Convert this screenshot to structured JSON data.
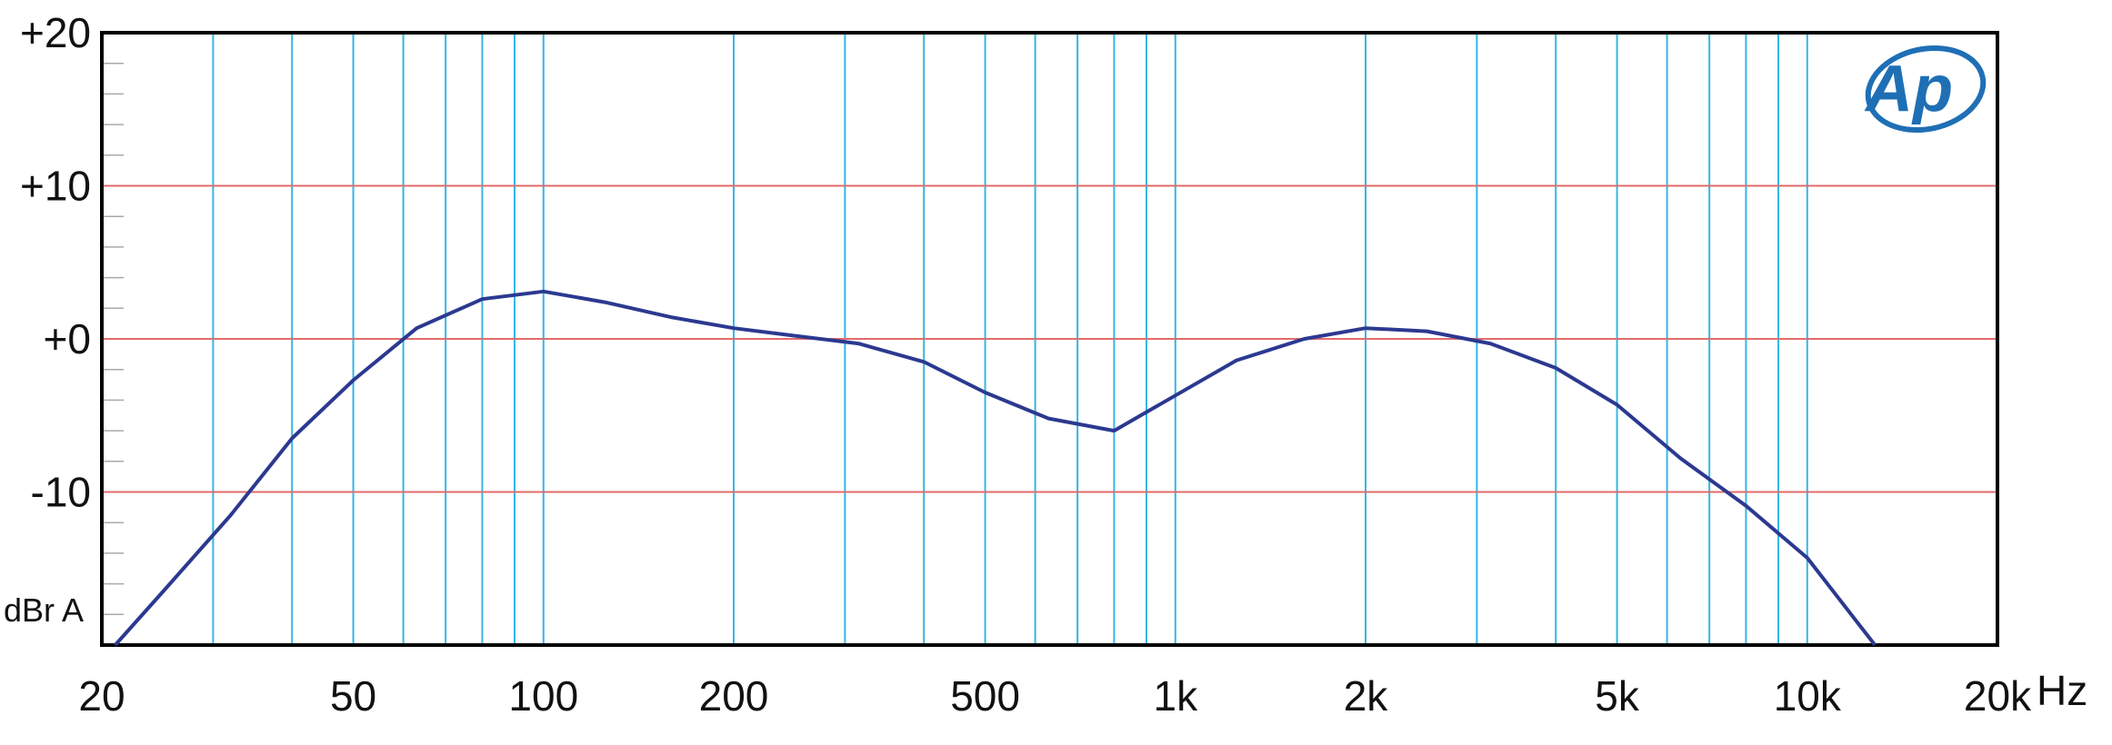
{
  "chart_data": {
    "type": "line",
    "title": "",
    "xlabel": "Hz",
    "ylabel": "dBr A",
    "xscale": "log",
    "xlim": [
      20,
      20000
    ],
    "ylim": [
      -20,
      20
    ],
    "x_ticks": [
      {
        "value": 20,
        "label": "20"
      },
      {
        "value": 50,
        "label": "50"
      },
      {
        "value": 100,
        "label": "100"
      },
      {
        "value": 200,
        "label": "200"
      },
      {
        "value": 500,
        "label": "500"
      },
      {
        "value": 1000,
        "label": "1k"
      },
      {
        "value": 2000,
        "label": "2k"
      },
      {
        "value": 5000,
        "label": "5k"
      },
      {
        "value": 10000,
        "label": "10k"
      },
      {
        "value": 20000,
        "label": "20k"
      }
    ],
    "y_ticks": [
      {
        "value": 20,
        "label": "+20"
      },
      {
        "value": 10,
        "label": "+10"
      },
      {
        "value": 0,
        "label": "+0"
      },
      {
        "value": -10,
        "label": "-10"
      }
    ],
    "vertical_grid": [
      30,
      40,
      50,
      60,
      70,
      80,
      90,
      100,
      200,
      300,
      400,
      500,
      600,
      700,
      800,
      900,
      1000,
      2000,
      3000,
      4000,
      5000,
      6000,
      7000,
      8000,
      9000,
      10000
    ],
    "horizontal_grid": [
      10,
      0,
      -10
    ],
    "minor_y_ticks": [
      18,
      16,
      14,
      12,
      8,
      6,
      4,
      2,
      -2,
      -4,
      -6,
      -8,
      -12,
      -14,
      -16,
      -18
    ],
    "grid": true,
    "series": [
      {
        "x": [
          21,
          25,
          32,
          40,
          50,
          63,
          80,
          100,
          125,
          160,
          200,
          250,
          315,
          400,
          500,
          630,
          800,
          1000,
          1250,
          1600,
          2000,
          2500,
          3150,
          4000,
          5000,
          6300,
          8000,
          10000,
          12800
        ],
        "y": [
          -20,
          -16.5,
          -11.5,
          -6.5,
          -2.7,
          0.7,
          2.6,
          3.1,
          2.4,
          1.4,
          0.7,
          0.2,
          -0.3,
          -1.5,
          -3.5,
          -5.2,
          -6.0,
          -3.7,
          -1.4,
          0.0,
          0.7,
          0.5,
          -0.3,
          -1.9,
          -4.3,
          -7.8,
          -10.9,
          -14.3,
          -20
        ],
        "color": "#2b3990"
      }
    ],
    "colors": {
      "line": "#2b3990",
      "vertical_grid": "#35b6e6",
      "horizontal_grid": "#e06c6c",
      "frame": "#000000",
      "logo": "#1f6fb5"
    },
    "logo_text": "Ap"
  }
}
